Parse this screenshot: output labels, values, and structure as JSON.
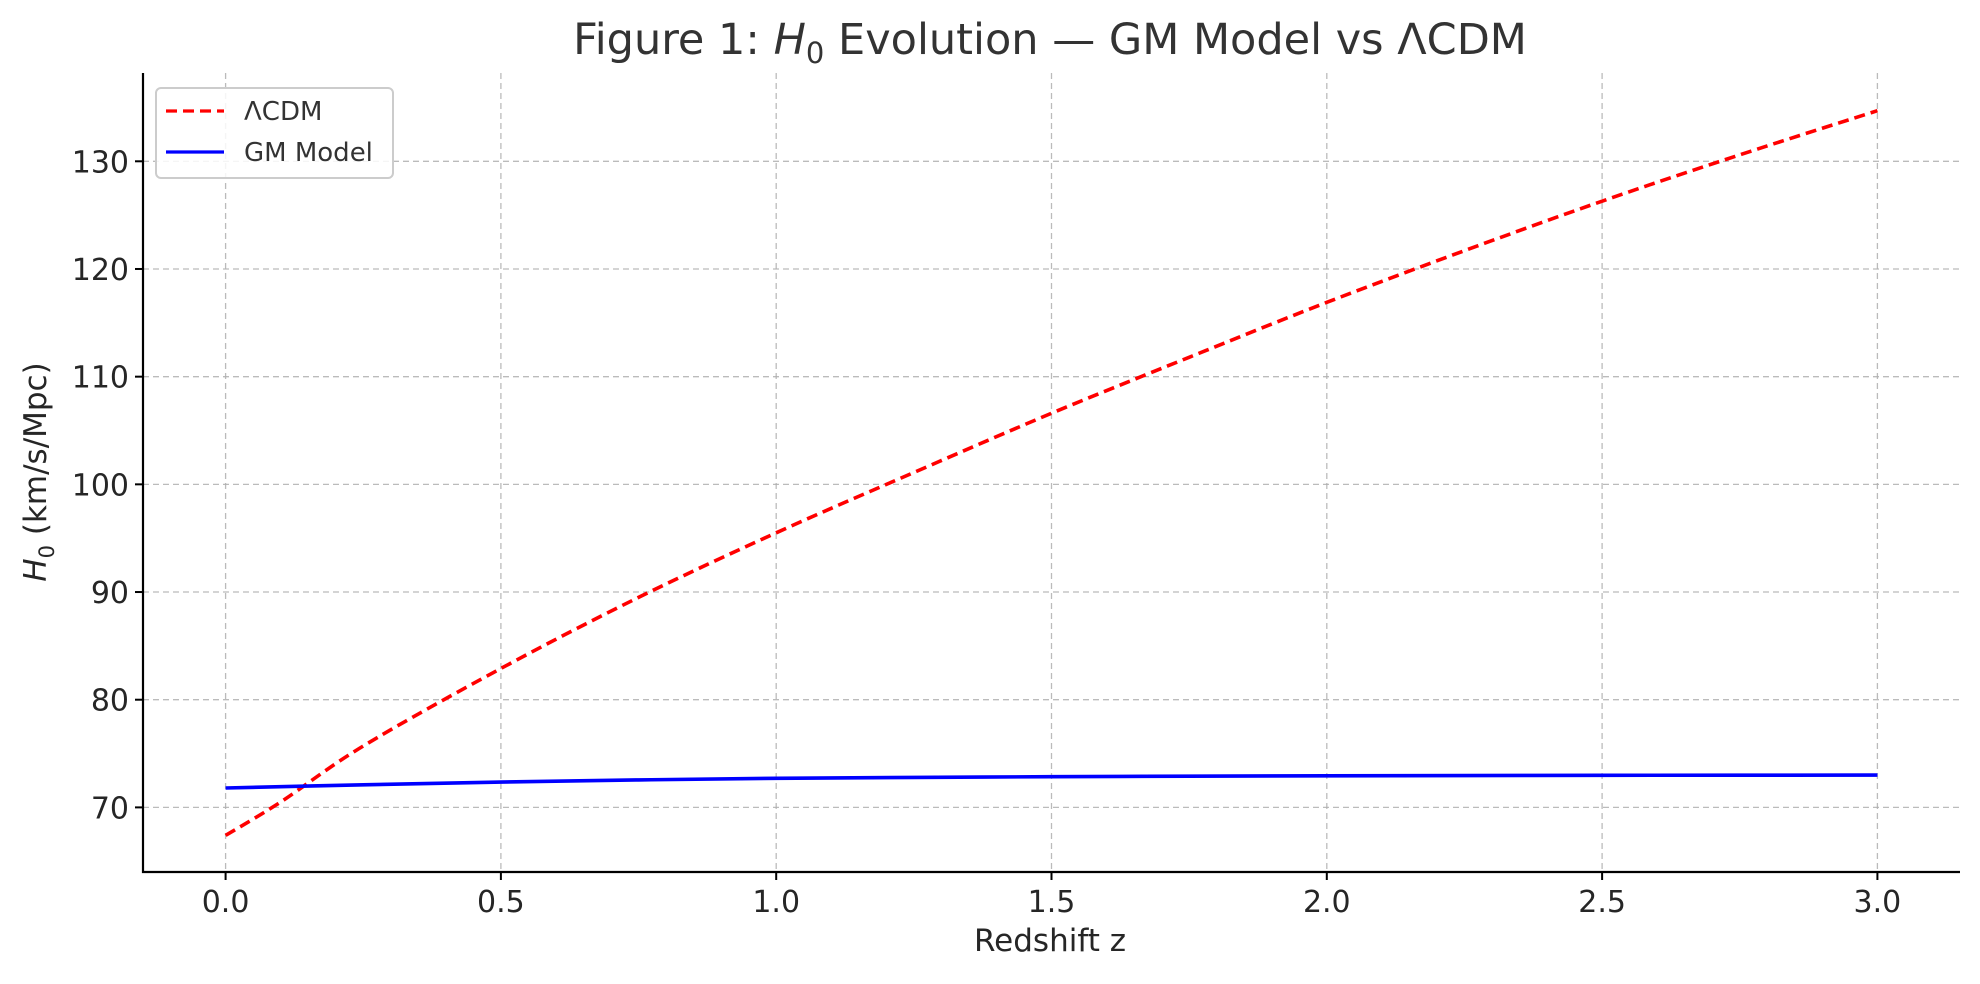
{
  "chart_data": {
    "type": "line",
    "title": {
      "prefix": "Figure 1: ",
      "symbol": "H",
      "subscript": "0",
      "suffix": " Evolution — GM Model vs ΛCDM"
    },
    "xlabel": "Redshift z",
    "ylabel": {
      "symbol": "H",
      "subscript": "0",
      "suffix": " (km/s/Mpc)"
    },
    "xlim": [
      -0.15,
      3.15
    ],
    "ylim": [
      64.0,
      138.2
    ],
    "xticks": [
      0.0,
      0.5,
      1.0,
      1.5,
      2.0,
      2.5,
      3.0
    ],
    "xtick_labels": [
      "0.0",
      "0.5",
      "1.0",
      "1.5",
      "2.0",
      "2.5",
      "3.0"
    ],
    "yticks": [
      70,
      80,
      90,
      100,
      110,
      120,
      130
    ],
    "ytick_labels": [
      "70",
      "80",
      "90",
      "100",
      "110",
      "120",
      "130"
    ],
    "grid": true,
    "legend_position": "top-left",
    "series": [
      {
        "name": "ΛCDM",
        "color": "#ff0000",
        "style": "dashed",
        "x": [
          0.0,
          0.1,
          0.25,
          0.5,
          0.75,
          1.0,
          1.25,
          1.5,
          1.75,
          2.0,
          2.25,
          2.5,
          2.75,
          3.0
        ],
        "y": [
          67.4,
          70.5,
          75.7,
          82.9,
          89.5,
          95.5,
          101.1,
          106.6,
          111.8,
          116.9,
          121.7,
          126.3,
          130.6,
          134.7
        ]
      },
      {
        "name": "GM Model",
        "color": "#0000ff",
        "style": "solid",
        "x": [
          0.0,
          0.25,
          0.5,
          0.75,
          1.0,
          1.25,
          1.5,
          1.75,
          2.0,
          2.25,
          2.5,
          2.75,
          3.0
        ],
        "y": [
          71.8,
          72.1,
          72.35,
          72.55,
          72.7,
          72.78,
          72.85,
          72.9,
          72.93,
          72.96,
          72.98,
          72.99,
          73.0
        ]
      }
    ]
  }
}
